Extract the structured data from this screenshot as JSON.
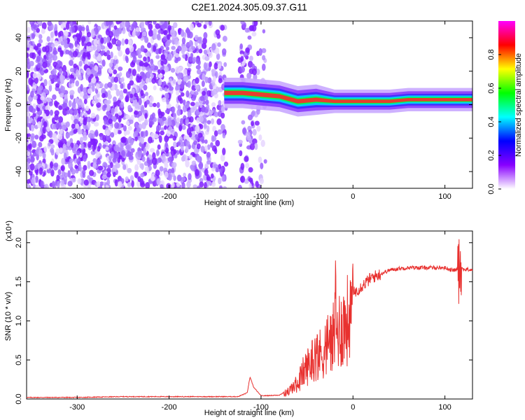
{
  "title": "C2E1.2024.305.09.37.G11",
  "chart_data": [
    {
      "type": "heatmap",
      "xlabel": "Height of straight line (km)",
      "ylabel": "Frequency (Hz)",
      "xlim": [
        -355,
        130
      ],
      "ylim": [
        -50,
        50
      ],
      "xticks": [
        -300,
        -200,
        -100,
        0,
        100
      ],
      "xtick_labels": [
        "-300",
        "-200",
        "-100",
        "0",
        "100"
      ],
      "yticks": [
        -40,
        -20,
        0,
        20,
        40
      ],
      "ytick_labels": [
        "-40",
        "-20",
        "0",
        "20",
        "40"
      ],
      "colorbar": {
        "label": "Normalized spectral amplitude",
        "range": [
          0,
          1
        ],
        "ticks": [
          0.0,
          0.2,
          0.4,
          0.6,
          0.8
        ],
        "tick_labels": [
          "0.0",
          "0.2",
          "0.4",
          "0.6",
          "0.8"
        ],
        "colors": [
          "#ffffff",
          "#8800ff",
          "#0000ff",
          "#00ffff",
          "#00ff00",
          "#ffff00",
          "#ff0000",
          "#ff00ff"
        ]
      },
      "signal_ridge": [
        {
          "x": -140,
          "y": 7
        },
        {
          "x": -120,
          "y": 7
        },
        {
          "x": -100,
          "y": 6
        },
        {
          "x": -80,
          "y": 5
        },
        {
          "x": -60,
          "y": 2
        },
        {
          "x": -40,
          "y": 3
        },
        {
          "x": -20,
          "y": 2
        },
        {
          "x": 0,
          "y": 2
        },
        {
          "x": 20,
          "y": 2
        },
        {
          "x": 40,
          "y": 2
        },
        {
          "x": 60,
          "y": 3
        },
        {
          "x": 80,
          "y": 3
        },
        {
          "x": 100,
          "y": 3
        },
        {
          "x": 120,
          "y": 3
        },
        {
          "x": 130,
          "y": 3
        }
      ]
    },
    {
      "type": "line",
      "xlabel": "Height of straight line (km)",
      "ylabel": "SNR (10 * v/v)",
      "yscale_label": "(x10⁴)",
      "xlim": [
        -355,
        130
      ],
      "ylim": [
        0,
        2.15
      ],
      "xticks": [
        -300,
        -200,
        -100,
        0,
        100
      ],
      "xtick_labels": [
        "-300",
        "-200",
        "-100",
        "0",
        "100"
      ],
      "yticks": [
        0.0,
        0.5,
        1.0,
        1.5,
        2.0
      ],
      "ytick_labels": [
        "0.0",
        "0.5",
        "1.0",
        "1.5",
        "2.0"
      ],
      "color": "#e8312f",
      "series": [
        {
          "x": [
            -355,
            -300,
            -250,
            -200,
            -150,
            -125,
            -115,
            -112,
            -108,
            -100,
            -80,
            -70,
            -60,
            -55,
            -50,
            -45,
            -40,
            -35,
            -30,
            -25,
            -20,
            -15,
            -10,
            -5,
            0,
            5,
            10,
            20,
            30,
            40,
            50,
            60,
            70,
            80,
            90,
            100,
            108,
            112,
            116,
            120,
            130
          ],
          "y": [
            0.02,
            0.02,
            0.03,
            0.03,
            0.03,
            0.03,
            0.08,
            0.28,
            0.15,
            0.04,
            0.05,
            0.12,
            0.25,
            0.4,
            0.5,
            0.6,
            0.7,
            0.7,
            0.8,
            0.9,
            1.0,
            1.1,
            1.15,
            1.25,
            1.35,
            1.4,
            1.45,
            1.55,
            1.6,
            1.65,
            1.67,
            1.68,
            1.68,
            1.68,
            1.68,
            1.68,
            1.65,
            1.65,
            1.7,
            1.66,
            1.65
          ]
        }
      ]
    }
  ]
}
